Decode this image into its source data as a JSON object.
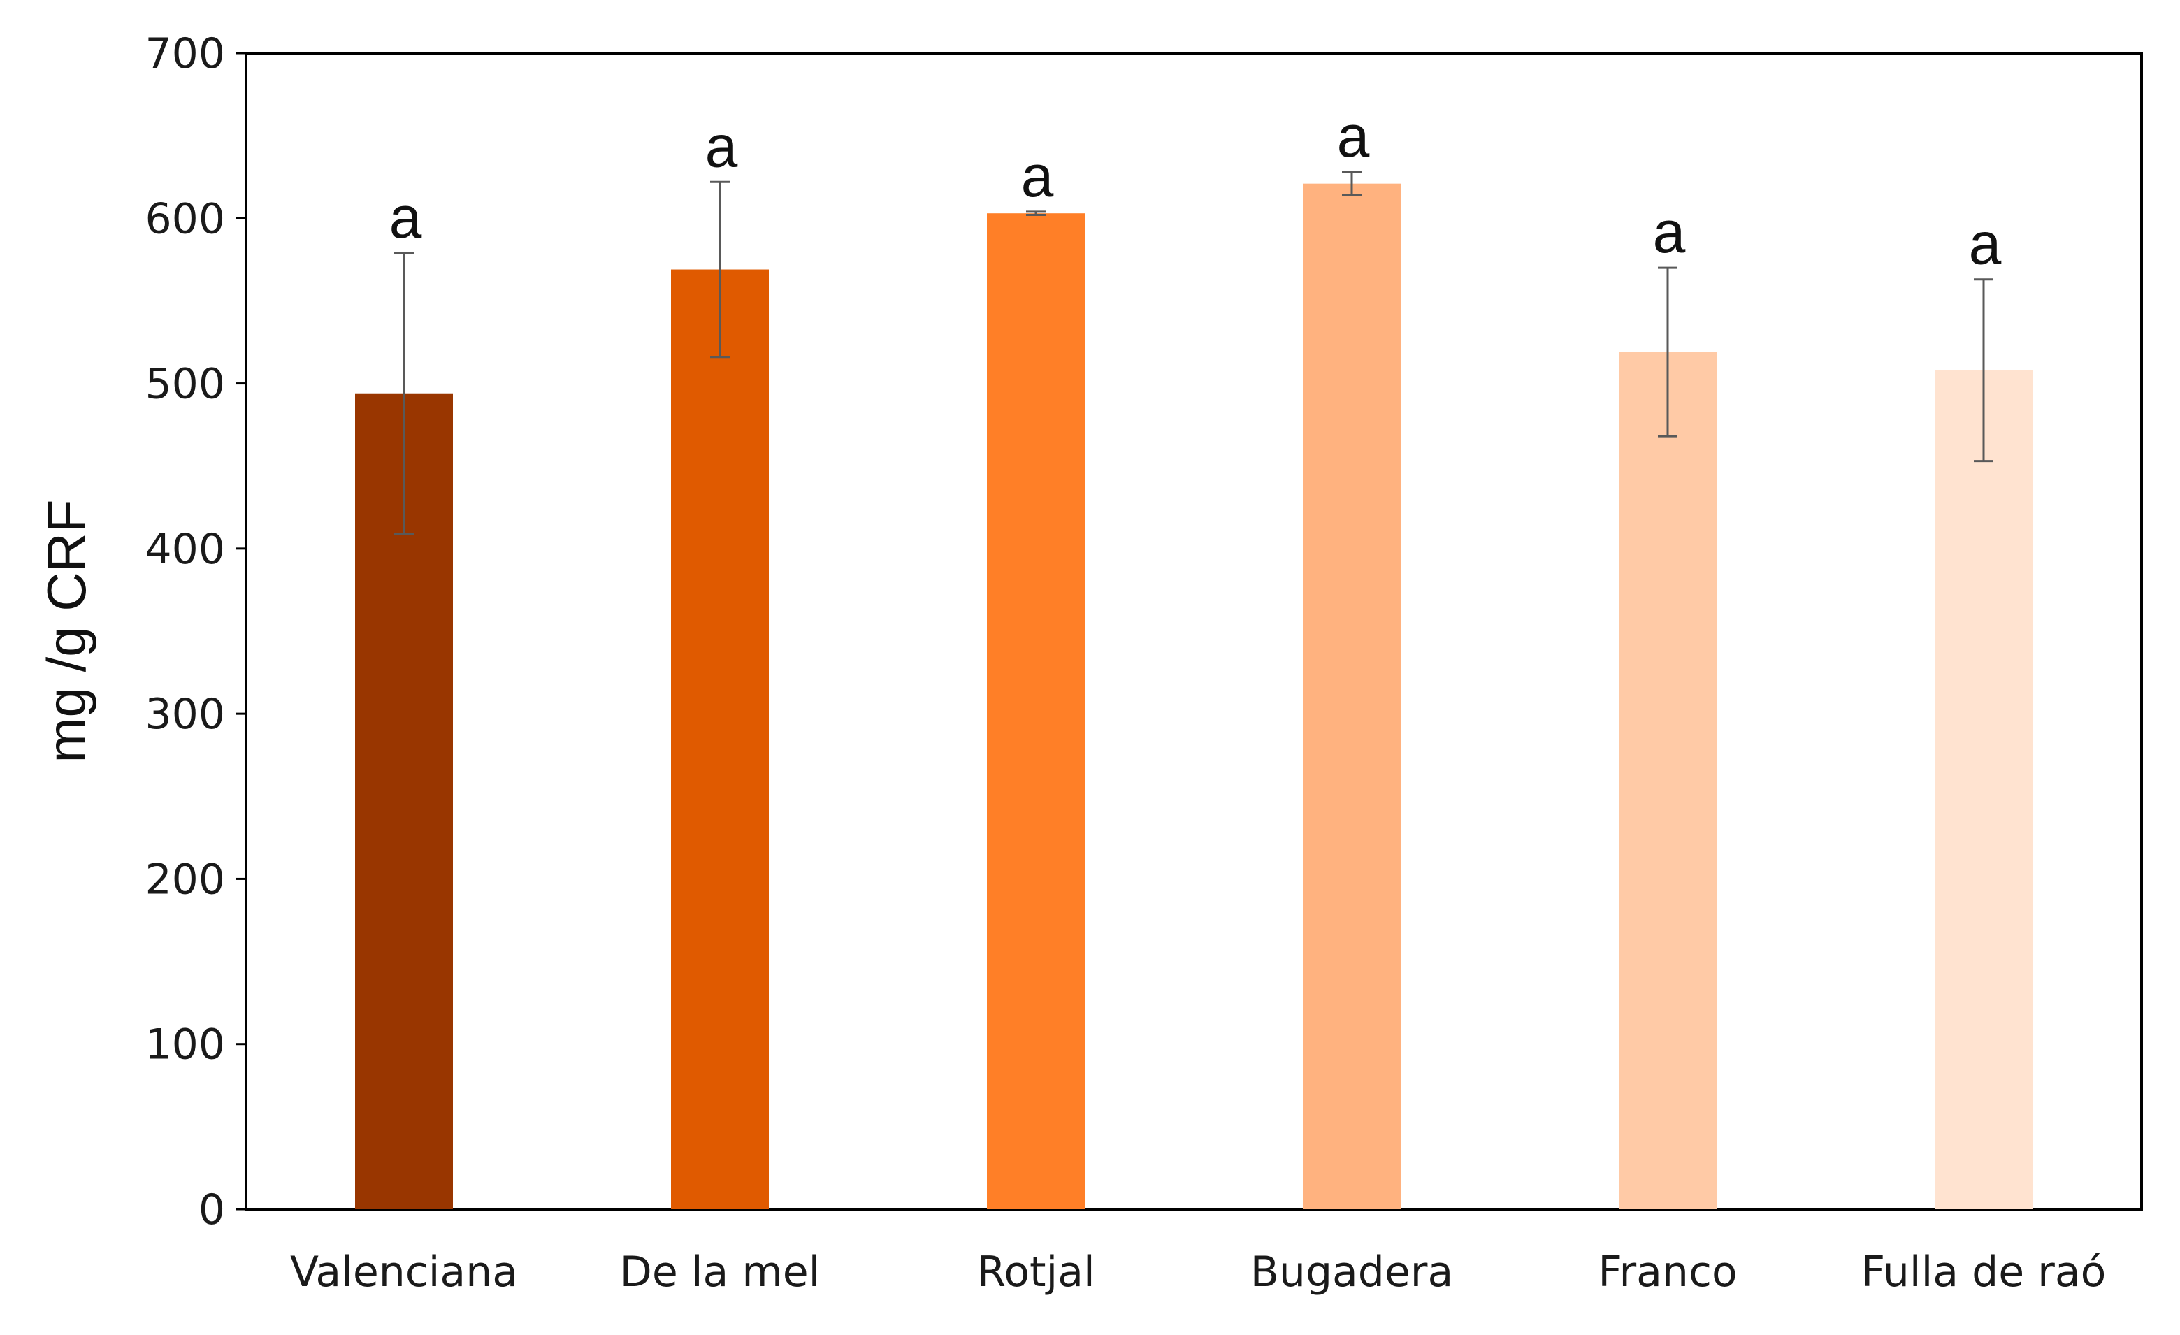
{
  "chart_data": {
    "type": "bar",
    "title": "",
    "xlabel": "",
    "ylabel": "mg /g CRF",
    "ylim": [
      0,
      700
    ],
    "yticks": [
      0,
      100,
      200,
      300,
      400,
      500,
      600,
      700
    ],
    "grid": false,
    "legend": "none",
    "categories": [
      "Valenciana",
      "De la mel",
      "Rotjal",
      "Bugadera",
      "Franco",
      "Fulla de raó"
    ],
    "values": [
      494,
      569,
      603,
      621,
      519,
      508
    ],
    "error_bars": [
      85,
      53,
      1,
      7,
      51,
      55
    ],
    "annotations": [
      "a",
      "a",
      "a",
      "a",
      "a",
      "a"
    ],
    "bar_colors": [
      "#993600",
      "#E05A00",
      "#FF7F27",
      "#FFB27F",
      "#FFCAA6",
      "#FFE3D0"
    ],
    "errorbar_color": "#595959",
    "axis_color": "#000000"
  }
}
